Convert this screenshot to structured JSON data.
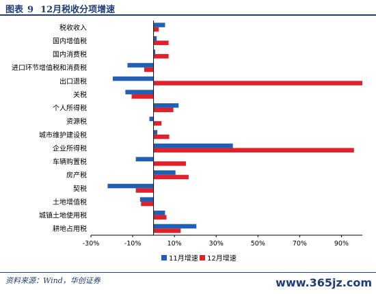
{
  "header": {
    "figure_label": "图表",
    "figure_number": "9",
    "title": "12月税收分项增速"
  },
  "footer": {
    "source": "资料来源：Wind，华创证券",
    "watermark": "www.365jz.com"
  },
  "chart_data": {
    "type": "bar",
    "orientation": "horizontal",
    "categories": [
      "税收收入",
      "国内增值税",
      "国内消费税",
      "进口环节增值税和消费税",
      "出口退税",
      "关税",
      "个人所得税",
      "资源税",
      "城市维护建设税",
      "企业所得税",
      "车辆购置税",
      "房产税",
      "契税",
      "土地增值税",
      "城镇土地使用税",
      "耕地占用税"
    ],
    "series": [
      {
        "name": "11月增速",
        "color": "#1f5fb4",
        "values": [
          5.5,
          1.5,
          0.8,
          -12.5,
          -19.5,
          -13.5,
          12,
          -2,
          1.8,
          38,
          -8.5,
          10.5,
          -22,
          -6.5,
          5.5,
          20.5
        ]
      },
      {
        "name": "12月增速",
        "color": "#e0202a",
        "values": [
          2.5,
          7.2,
          7.2,
          -4.5,
          100,
          -10.5,
          9.5,
          3.8,
          7.5,
          96,
          15.5,
          16.8,
          -8.5,
          -6,
          6.2,
          13
        ]
      }
    ],
    "xlim": [
      -30,
      100
    ],
    "xticks": [
      -30,
      -10,
      10,
      30,
      50,
      70,
      90
    ],
    "xtick_labels": [
      "-30%",
      "-10%",
      "10%",
      "30%",
      "50%",
      "70%",
      "90%"
    ],
    "legend_position": "bottom",
    "grid": false
  }
}
